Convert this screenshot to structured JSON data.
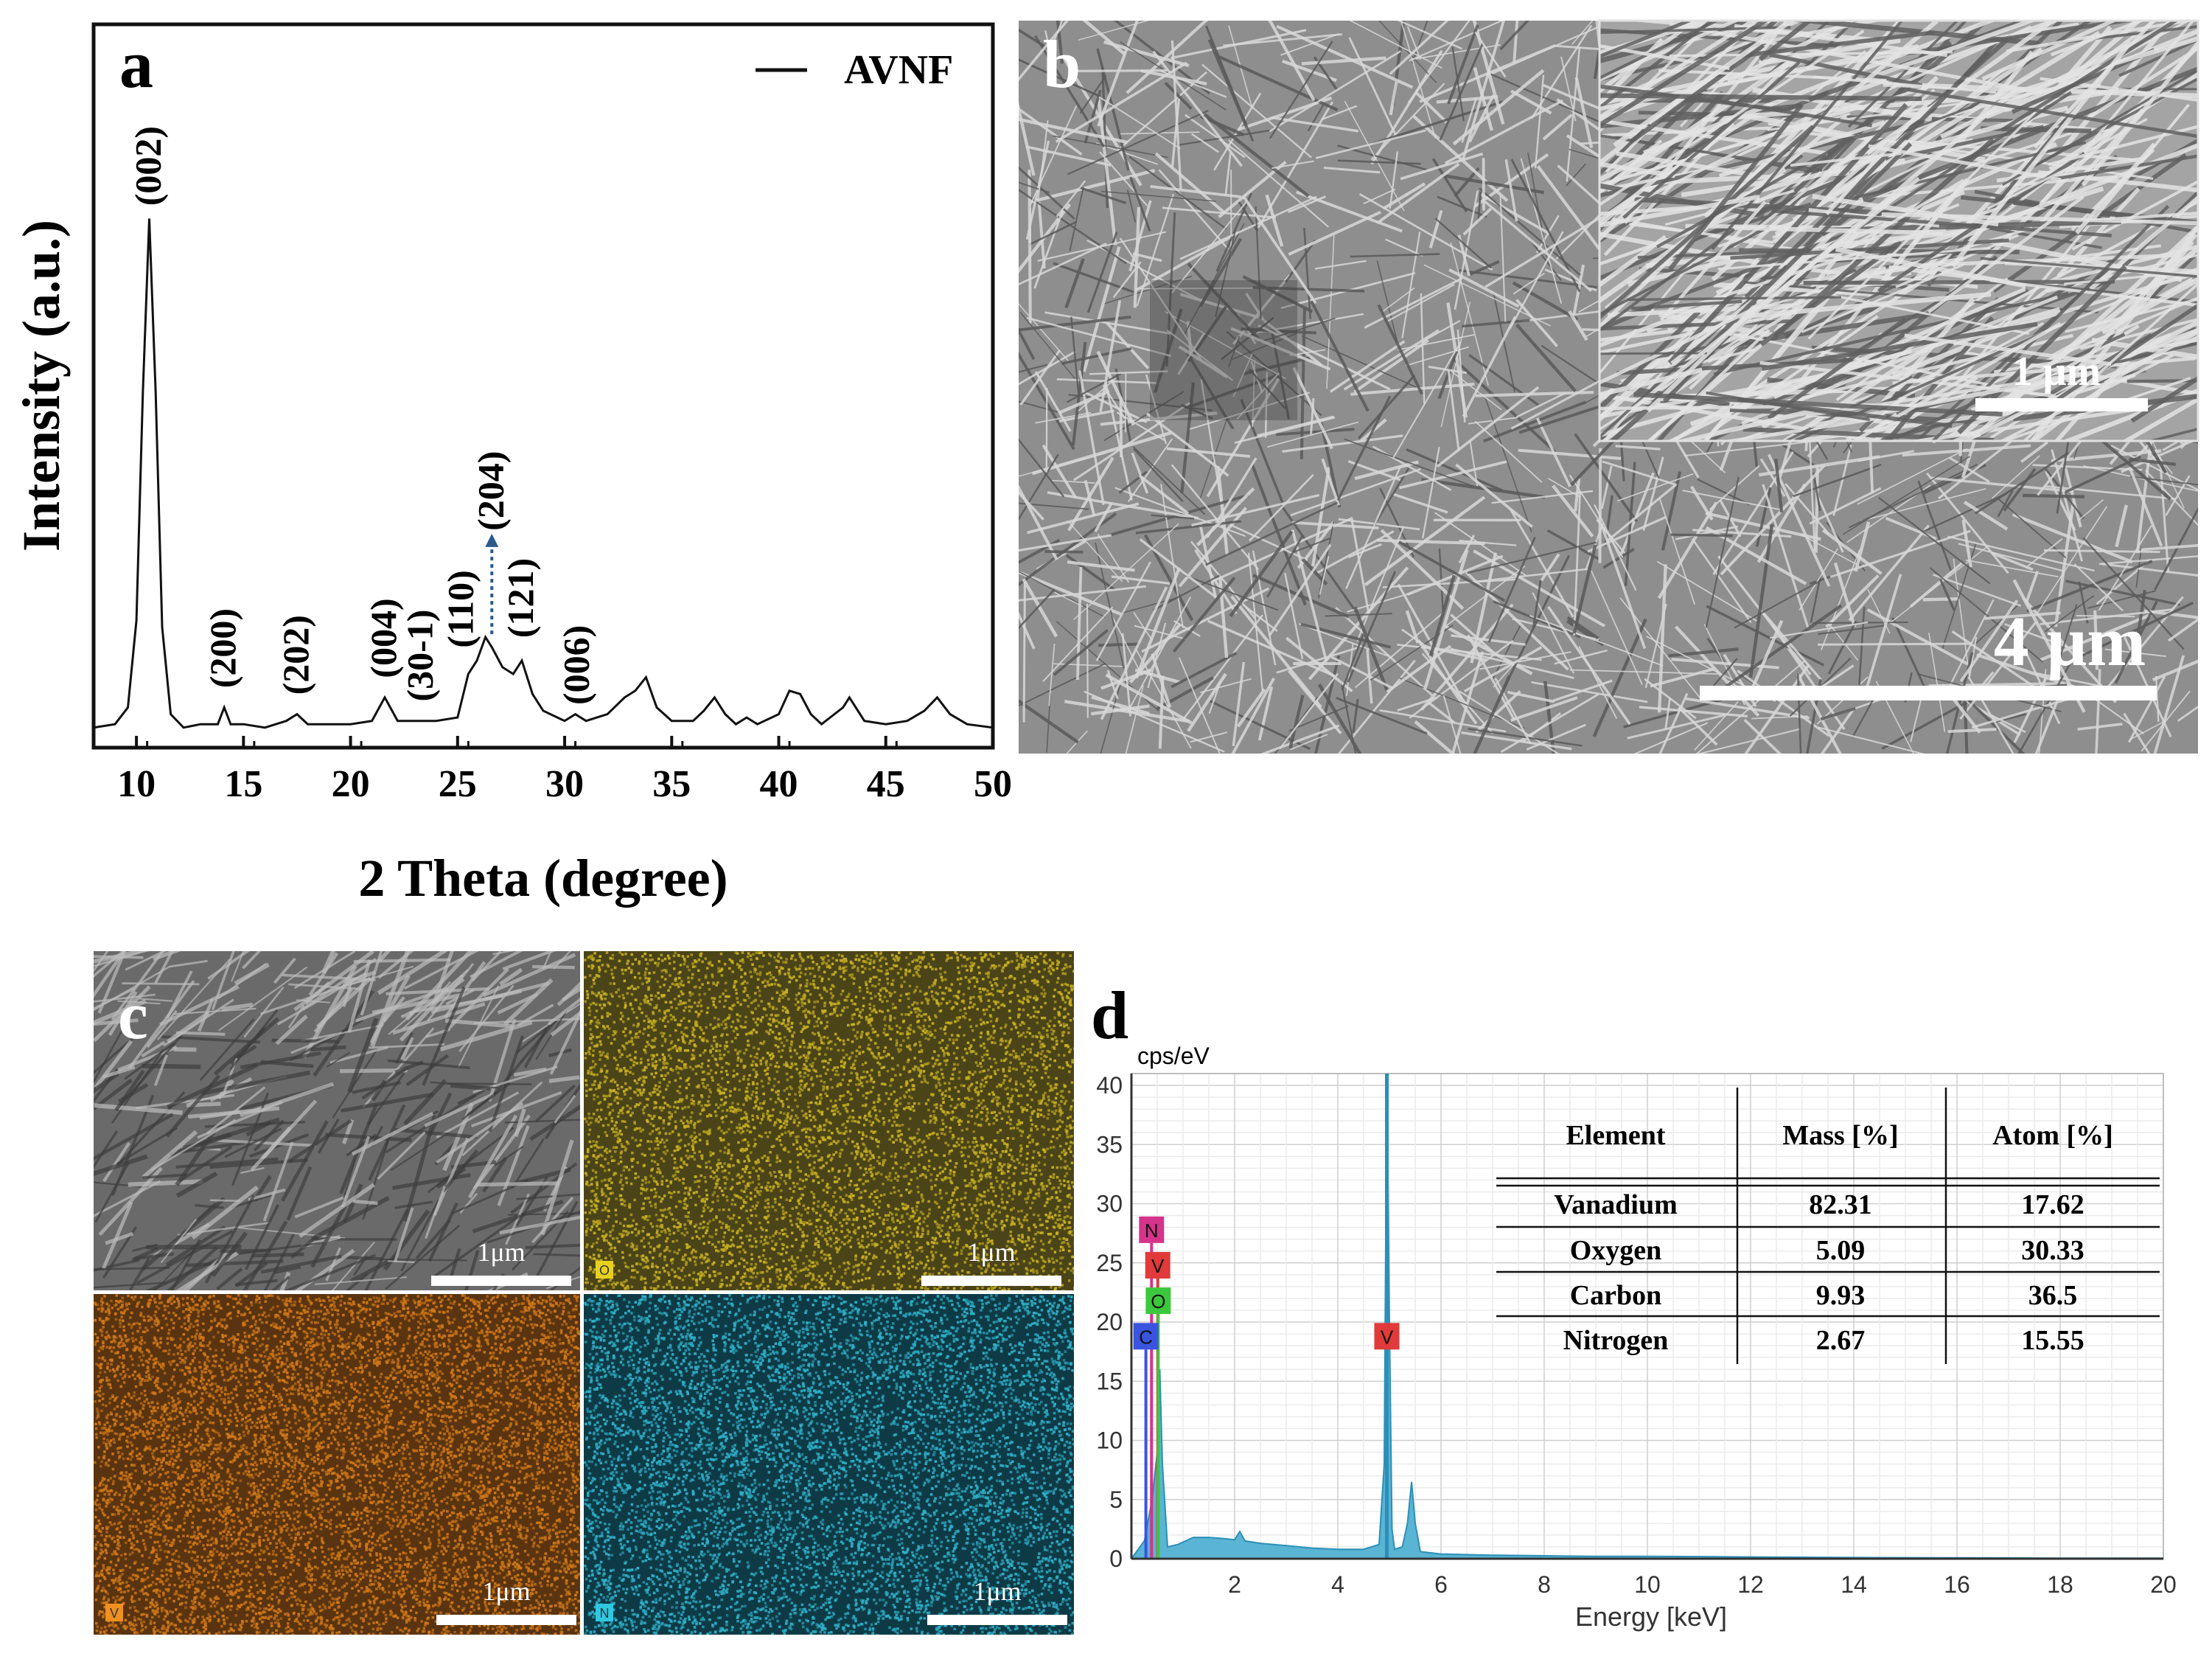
{
  "colors": {
    "xrd_line": "#111111",
    "annotation_arrow": "#2a5a8a",
    "sem_bg": "#8c8c8c",
    "sem_fiber": "#d8d8d8",
    "sem_fiber_dark": "#5a5a5a",
    "map_O": "#c8b020",
    "map_V": "#d07818",
    "map_N": "#2fb0c8",
    "eds_fill": "#5ab4d4",
    "eds_line": "#2c8fb8",
    "badge_N": "#d6338a",
    "badge_V": "#e03a3a",
    "badge_O": "#3cc83c",
    "badge_C": "#3a54e0"
  },
  "chart_data": [
    {
      "panel": "a",
      "type": "line",
      "legend": "AVNF",
      "legend_position": "top-right",
      "xlabel": "2 Theta (degree)",
      "ylabel": "Intensity (a.u.)",
      "xlim": [
        8,
        50
      ],
      "xticks": [
        10,
        15,
        20,
        25,
        30,
        35,
        40,
        45,
        50
      ],
      "yticks_shown": false,
      "ylim": [
        -0.3,
        10.5
      ],
      "series": [
        {
          "x": [
            8.0,
            9.0,
            9.6,
            10.0,
            10.3,
            10.6,
            10.9,
            11.2,
            11.6,
            12.2,
            13.0,
            13.8,
            14.1,
            14.4,
            15.0,
            16.0,
            17.0,
            17.5,
            18.0,
            19.0,
            20.0,
            21.0,
            21.6,
            22.2,
            23.0,
            24.0,
            25.0,
            25.5,
            25.9,
            26.3,
            26.6,
            27.1,
            27.6,
            28.0,
            28.5,
            29.0,
            30.0,
            30.5,
            31.0,
            32.0,
            32.8,
            33.3,
            33.8,
            34.3,
            35.0,
            36.0,
            36.5,
            37.0,
            37.5,
            38.0,
            38.5,
            39.0,
            40.0,
            40.5,
            41.0,
            41.5,
            42.0,
            43.0,
            43.3,
            44.0,
            45.0,
            46.0,
            46.8,
            47.4,
            48.0,
            48.8,
            50.0
          ],
          "y": [
            0.0,
            0.05,
            0.3,
            1.6,
            5.0,
            7.6,
            5.0,
            1.5,
            0.2,
            0.0,
            0.05,
            0.05,
            0.3,
            0.05,
            0.05,
            0.0,
            0.1,
            0.2,
            0.05,
            0.05,
            0.05,
            0.1,
            0.45,
            0.1,
            0.1,
            0.1,
            0.15,
            0.8,
            1.0,
            1.35,
            1.2,
            0.9,
            0.8,
            1.0,
            0.5,
            0.25,
            0.1,
            0.2,
            0.1,
            0.2,
            0.45,
            0.55,
            0.75,
            0.3,
            0.1,
            0.1,
            0.25,
            0.45,
            0.2,
            0.05,
            0.15,
            0.05,
            0.2,
            0.55,
            0.5,
            0.2,
            0.05,
            0.3,
            0.45,
            0.1,
            0.05,
            0.1,
            0.25,
            0.45,
            0.2,
            0.05,
            0.0
          ]
        }
      ],
      "annotations": [
        {
          "label": "(002)",
          "x": 10.6,
          "y": 7.7
        },
        {
          "label": "(200)",
          "x": 14.1,
          "y": 0.5
        },
        {
          "label": "(202)",
          "x": 17.5,
          "y": 0.4
        },
        {
          "label": "(004)",
          "x": 21.6,
          "y": 0.65
        },
        {
          "label": "(30-1)",
          "x": 23.3,
          "y": 0.3
        },
        {
          "label": "(110)",
          "x": 25.2,
          "y": 1.1
        },
        {
          "label": "(204)",
          "x": 26.6,
          "y": 2.85,
          "arrow_from_y": 1.35
        },
        {
          "label": "(121)",
          "x": 28.0,
          "y": 1.25
        },
        {
          "label": "(006)",
          "x": 30.6,
          "y": 0.25
        }
      ]
    },
    {
      "panel": "d",
      "type": "area",
      "ylabel": "cps/eV",
      "xlabel": "Energy [keV]",
      "xlim": [
        0,
        20
      ],
      "ylim": [
        0,
        41
      ],
      "xticks": [
        2,
        4,
        6,
        8,
        10,
        12,
        14,
        16,
        18,
        20
      ],
      "yticks": [
        0,
        5,
        10,
        15,
        20,
        25,
        30,
        35,
        40
      ],
      "grid": true,
      "series": [
        {
          "x": [
            0.0,
            0.25,
            0.4,
            0.5,
            0.55,
            0.6,
            0.7,
            0.9,
            1.2,
            1.5,
            1.8,
            2.0,
            2.1,
            2.2,
            2.5,
            3.0,
            3.5,
            4.0,
            4.5,
            4.8,
            4.9,
            4.95,
            5.0,
            5.05,
            5.1,
            5.25,
            5.35,
            5.43,
            5.5,
            5.6,
            6.0,
            7.0,
            8.0,
            9.0,
            10.0,
            11.0,
            12.0,
            14.0,
            16.0,
            18.0,
            20.0
          ],
          "y": [
            0.0,
            1.5,
            5.0,
            9.0,
            16.0,
            8.0,
            1.0,
            1.2,
            1.8,
            1.8,
            1.7,
            1.6,
            2.3,
            1.5,
            1.3,
            1.1,
            0.9,
            0.8,
            0.8,
            1.2,
            8.0,
            41.0,
            20.0,
            2.5,
            0.8,
            1.0,
            3.0,
            6.5,
            3.0,
            0.6,
            0.4,
            0.3,
            0.25,
            0.2,
            0.2,
            0.18,
            0.15,
            0.1,
            0.08,
            0.05,
            0.05
          ]
        }
      ],
      "element_badges": [
        {
          "label": "N",
          "key": "badge_N",
          "energy": 0.39,
          "badge_y": 27.8
        },
        {
          "label": "V",
          "key": "badge_V",
          "energy": 0.51,
          "badge_y": 24.8
        },
        {
          "label": "O",
          "key": "badge_O",
          "energy": 0.52,
          "badge_y": 21.8
        },
        {
          "label": "C",
          "key": "badge_C",
          "energy": 0.28,
          "badge_y": 18.8
        },
        {
          "label": "V",
          "key": "badge_V",
          "energy": 4.95,
          "badge_y": 18.8
        }
      ],
      "table": {
        "headers": [
          "Element",
          "Mass [%]",
          "Atom [%]"
        ],
        "rows": [
          [
            "Vanadium",
            "82.31",
            "17.62"
          ],
          [
            "Oxygen",
            "5.09",
            "30.33"
          ],
          [
            "Carbon",
            "9.93",
            "36.5"
          ],
          [
            "Nitrogen",
            "2.67",
            "15.55"
          ]
        ]
      }
    }
  ],
  "panel_b": {
    "letter": "b",
    "inset_scale_label": "1 μm",
    "main_scale_label": "4 μm"
  },
  "panel_c": {
    "letter": "c",
    "tiles": [
      {
        "badge": "",
        "scale_label": "1μm"
      },
      {
        "badge": "O",
        "scale_label": "1μm"
      },
      {
        "badge": "V",
        "scale_label": "1μm"
      },
      {
        "badge": "N",
        "scale_label": "1μm"
      }
    ]
  },
  "panel_letters": {
    "a": "a",
    "d": "d"
  }
}
